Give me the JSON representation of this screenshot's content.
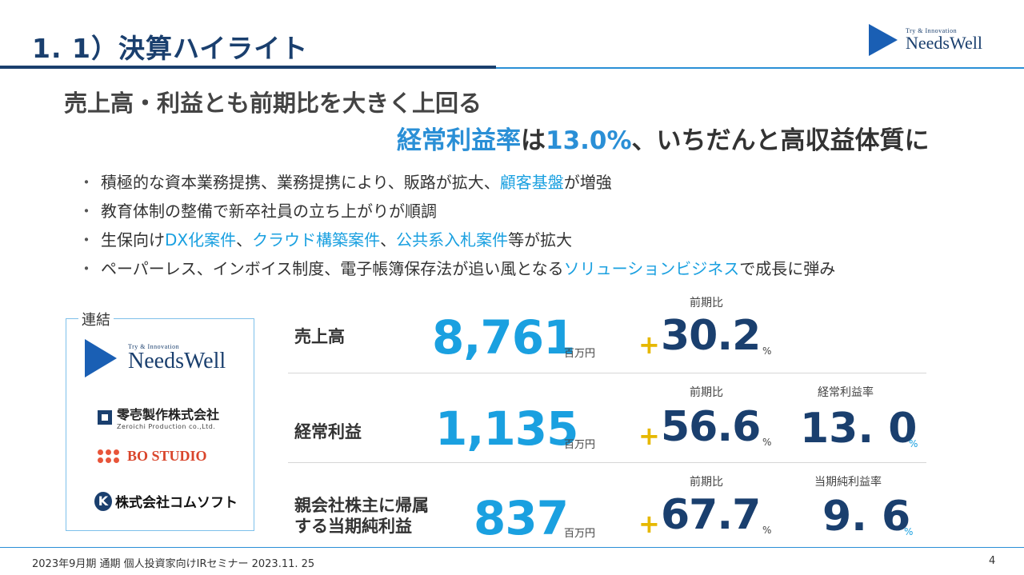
{
  "header": {
    "title": "1. 1）決算ハイライト",
    "logo": {
      "tagline": "Try & Innovation",
      "name": "NeedsWell"
    }
  },
  "headline": {
    "line1": "売上高・利益とも前期比を大きく上回る",
    "line2_highlight": "経常利益率",
    "line2_mid": "は",
    "line2_value": "13.0%",
    "line2_rest": "、いちだんと高収益体質に"
  },
  "bullets": [
    {
      "marker": "・",
      "parts": [
        {
          "t": "積極的な資本業務提携、業務提携により、販路が拡大、",
          "hl": false
        },
        {
          "t": "顧客基盤",
          "hl": true
        },
        {
          "t": "が増強",
          "hl": false
        }
      ]
    },
    {
      "marker": "・",
      "parts": [
        {
          "t": "教育体制の整備で新卒社員の立ち上がりが順調",
          "hl": false
        }
      ]
    },
    {
      "marker": "・",
      "parts": [
        {
          "t": "生保向け",
          "hl": false
        },
        {
          "t": "DX化案件",
          "hl": true
        },
        {
          "t": "、",
          "hl": false
        },
        {
          "t": "クラウド構築案件",
          "hl": true
        },
        {
          "t": "、",
          "hl": false
        },
        {
          "t": "公共系入札案件",
          "hl": true
        },
        {
          "t": "等が拡大",
          "hl": false
        }
      ]
    },
    {
      "marker": "・",
      "parts": [
        {
          "t": "ペーパーレス、インボイス制度、電子帳簿保存法が追い風となる",
          "hl": false
        },
        {
          "t": "ソリューションビジネス",
          "hl": true
        },
        {
          "t": "で成長に弾み",
          "hl": false
        }
      ]
    }
  ],
  "consolidation": {
    "label": "連結",
    "companies": [
      {
        "tagline": "Try & Innovation",
        "name": "NeedsWell"
      },
      {
        "name": "零壱製作株式会社",
        "sub": "Zeroichi Production co.,Ltd."
      },
      {
        "name": "BO STUDIO"
      },
      {
        "name": "株式会社コムソフト",
        "mark": "K"
      }
    ]
  },
  "metrics": {
    "sales": {
      "label": "売上高",
      "value": "8,761",
      "unit": "百万円",
      "yoy_header": "前期比",
      "yoy_plus": "+",
      "yoy_value": "30.2",
      "yoy_unit": "%"
    },
    "ordinary": {
      "label": "経常利益",
      "value": "1,135",
      "unit": "百万円",
      "yoy_header": "前期比",
      "yoy_plus": "+",
      "yoy_value": "56.6",
      "yoy_unit": "%",
      "ratio_header": "経常利益率",
      "ratio_value": "13. 0",
      "ratio_unit": "%"
    },
    "net": {
      "label_line1": "親会社株主に帰属",
      "label_line2": "する当期純利益",
      "value": "837",
      "unit": "百万円",
      "yoy_header": "前期比",
      "yoy_plus": "+",
      "yoy_value": "67.7",
      "yoy_unit": "%",
      "ratio_header": "当期純利益率",
      "ratio_value": "9. 6",
      "ratio_unit": "%"
    }
  },
  "footer": {
    "text": "2023年9月期 通期 個人投資家向けIRセミナー 2023.11. 25",
    "page": "4"
  },
  "colors": {
    "navy": "#1a3f6e",
    "cyan": "#1aa0e0",
    "accent_blue": "#2a8fd6",
    "plus_yellow": "#e6b800"
  }
}
